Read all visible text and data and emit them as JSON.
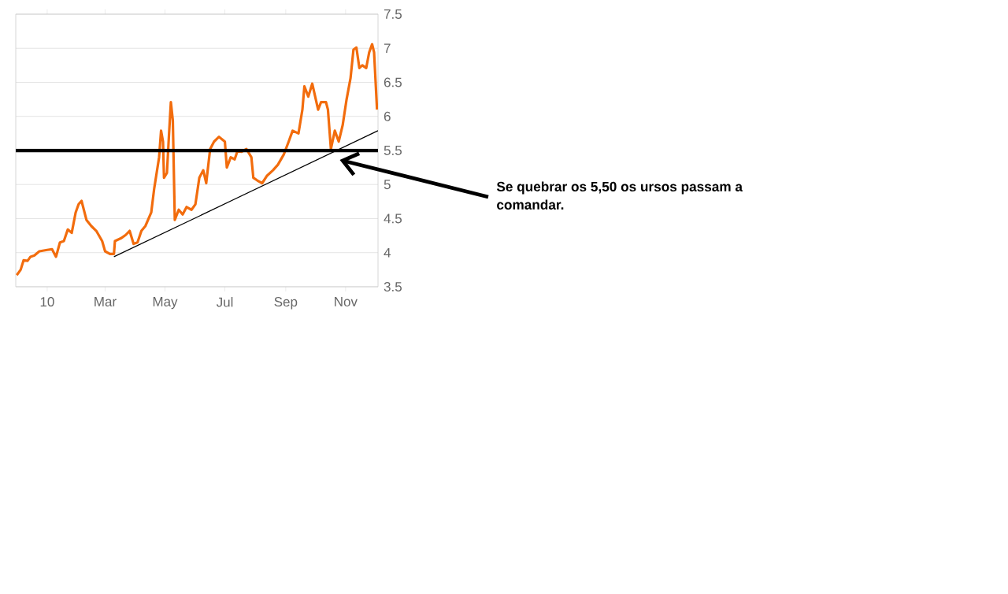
{
  "chart_data": {
    "type": "line",
    "x": [
      "2009-12-01",
      "2009-12-05",
      "2009-12-08",
      "2009-12-12",
      "2009-12-15",
      "2009-12-19",
      "2009-12-24",
      "2010-01-01",
      "2010-01-06",
      "2010-01-10",
      "2010-01-14",
      "2010-01-18",
      "2010-01-22",
      "2010-01-26",
      "2010-01-30",
      "2010-02-02",
      "2010-02-05",
      "2010-02-10",
      "2010-02-15",
      "2010-02-20",
      "2010-02-26",
      "2010-03-01",
      "2010-03-06",
      "2010-03-10",
      "2010-03-11",
      "2010-03-17",
      "2010-03-22",
      "2010-03-26",
      "2010-03-30",
      "2010-04-03",
      "2010-04-07",
      "2010-04-11",
      "2010-04-17",
      "2010-04-20",
      "2010-04-25",
      "2010-04-27",
      "2010-04-29",
      "2010-04-30",
      "2010-05-03",
      "2010-05-05",
      "2010-05-07",
      "2010-05-09",
      "2010-05-11",
      "2010-05-15",
      "2010-05-19",
      "2010-05-23",
      "2010-05-28",
      "2010-06-01",
      "2010-06-05",
      "2010-06-09",
      "2010-06-12",
      "2010-06-16",
      "2010-06-20",
      "2010-06-25",
      "2010-07-01",
      "2010-07-03",
      "2010-07-07",
      "2010-07-11",
      "2010-07-14",
      "2010-07-18",
      "2010-07-23",
      "2010-07-28",
      "2010-07-30",
      "2010-08-03",
      "2010-08-08",
      "2010-08-13",
      "2010-08-19",
      "2010-08-24",
      "2010-08-30",
      "2010-09-04",
      "2010-09-08",
      "2010-09-14",
      "2010-09-18",
      "2010-09-20",
      "2010-09-24",
      "2010-09-28",
      "2010-10-04",
      "2010-10-07",
      "2010-10-12",
      "2010-10-14",
      "2010-10-17",
      "2010-10-21",
      "2010-10-25",
      "2010-10-29",
      "2010-11-02",
      "2010-11-06",
      "2010-11-09",
      "2010-11-12",
      "2010-11-15",
      "2010-11-18",
      "2010-11-22",
      "2010-11-25",
      "2010-11-28",
      "2010-11-30",
      "2010-12-03"
    ],
    "series": [
      {
        "color": "#f26c0d",
        "values": [
          3.67,
          3.75,
          3.89,
          3.88,
          3.94,
          3.96,
          4.02,
          4.04,
          4.05,
          3.94,
          4.15,
          4.17,
          4.34,
          4.29,
          4.59,
          4.71,
          4.76,
          4.48,
          4.39,
          4.32,
          4.17,
          4.02,
          3.98,
          3.98,
          4.17,
          4.21,
          4.26,
          4.32,
          4.13,
          4.15,
          4.32,
          4.39,
          4.59,
          4.94,
          5.4,
          5.79,
          5.63,
          5.1,
          5.17,
          5.71,
          6.21,
          5.94,
          4.48,
          4.63,
          4.56,
          4.67,
          4.63,
          4.71,
          5.1,
          5.21,
          5.02,
          5.52,
          5.63,
          5.7,
          5.63,
          5.25,
          5.4,
          5.37,
          5.5,
          5.48,
          5.52,
          5.4,
          5.1,
          5.06,
          5.02,
          5.13,
          5.21,
          5.29,
          5.44,
          5.63,
          5.79,
          5.75,
          6.1,
          6.44,
          6.29,
          6.48,
          6.1,
          6.21,
          6.21,
          6.1,
          5.52,
          5.79,
          5.63,
          5.87,
          6.25,
          6.56,
          6.98,
          7.01,
          6.71,
          6.75,
          6.71,
          6.94,
          7.06,
          6.94,
          6.1
        ]
      },
      {
        "type": "line",
        "color": "#000000",
        "x": [
          "2010-03-10",
          "2010-12-04"
        ],
        "values": [
          3.94,
          5.79
        ]
      }
    ],
    "xlim": [
      "2009-11-30",
      "2010-12-04"
    ],
    "xticks": [
      {
        "value": "2010-01-01",
        "label": "10"
      },
      {
        "value": "2010-03-01",
        "label": "Mar"
      },
      {
        "value": "2010-05-01",
        "label": "May"
      },
      {
        "value": "2010-07-01",
        "label": "Jul"
      },
      {
        "value": "2010-09-01",
        "label": "Sep"
      },
      {
        "value": "2010-11-01",
        "label": "Nov"
      }
    ],
    "ylim": [
      3.5,
      7.5
    ],
    "yticks": [
      3.5,
      4,
      4.5,
      5,
      5.5,
      6,
      6.5,
      7,
      7.5
    ],
    "grid": "y",
    "ref_lines": [
      {
        "axis": "y",
        "value": 5.5,
        "color": "#000000"
      }
    ],
    "annotations": [
      "Se quebrar os 5,50 os ursos passam a comandar."
    ]
  }
}
